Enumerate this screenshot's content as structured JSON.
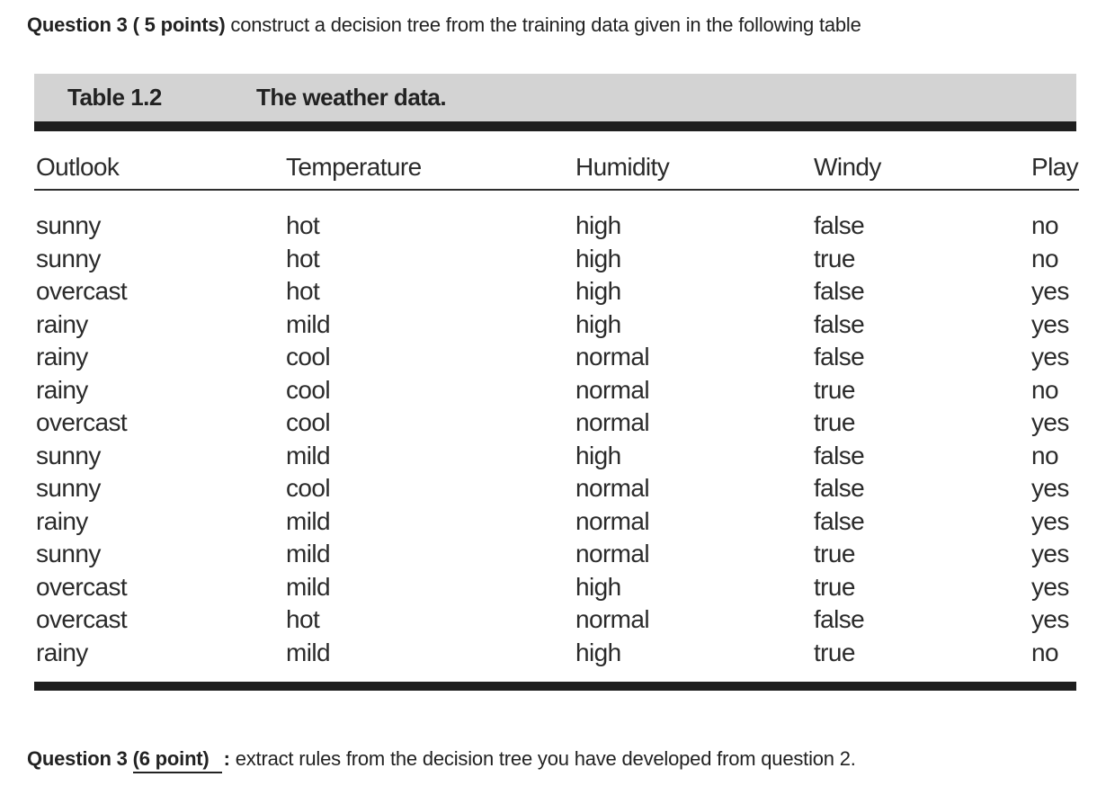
{
  "document": {
    "question_top": {
      "label": "Question 3 ( 5 points)",
      "text": " construct a decision tree from the training data given in the following table"
    },
    "question_bottom": {
      "label": "Question 3 ",
      "points": "(6 point)",
      "colon": ":",
      "text": "extract rules from the decision tree you have developed from question 2."
    }
  },
  "table": {
    "caption_label": "Table 1.2",
    "caption_title": "The weather data.",
    "columns": [
      "Outlook",
      "Temperature",
      "Humidity",
      "Windy",
      "Play"
    ],
    "rows": [
      [
        "sunny",
        "hot",
        "high",
        "false",
        "no"
      ],
      [
        "sunny",
        "hot",
        "high",
        "true",
        "no"
      ],
      [
        "overcast",
        "hot",
        "high",
        "false",
        "yes"
      ],
      [
        "rainy",
        "mild",
        "high",
        "false",
        "yes"
      ],
      [
        "rainy",
        "cool",
        "normal",
        "false",
        "yes"
      ],
      [
        "rainy",
        "cool",
        "normal",
        "true",
        "no"
      ],
      [
        "overcast",
        "cool",
        "normal",
        "true",
        "yes"
      ],
      [
        "sunny",
        "mild",
        "high",
        "false",
        "no"
      ],
      [
        "sunny",
        "cool",
        "normal",
        "false",
        "yes"
      ],
      [
        "rainy",
        "mild",
        "normal",
        "false",
        "yes"
      ],
      [
        "sunny",
        "mild",
        "normal",
        "true",
        "yes"
      ],
      [
        "overcast",
        "mild",
        "high",
        "true",
        "yes"
      ],
      [
        "overcast",
        "hot",
        "normal",
        "false",
        "yes"
      ],
      [
        "rainy",
        "mild",
        "high",
        "true",
        "no"
      ]
    ]
  },
  "colors": {
    "caption_bg": "#d3d3d3",
    "rule": "#1e1e1e",
    "text": "#2b2b2b"
  }
}
